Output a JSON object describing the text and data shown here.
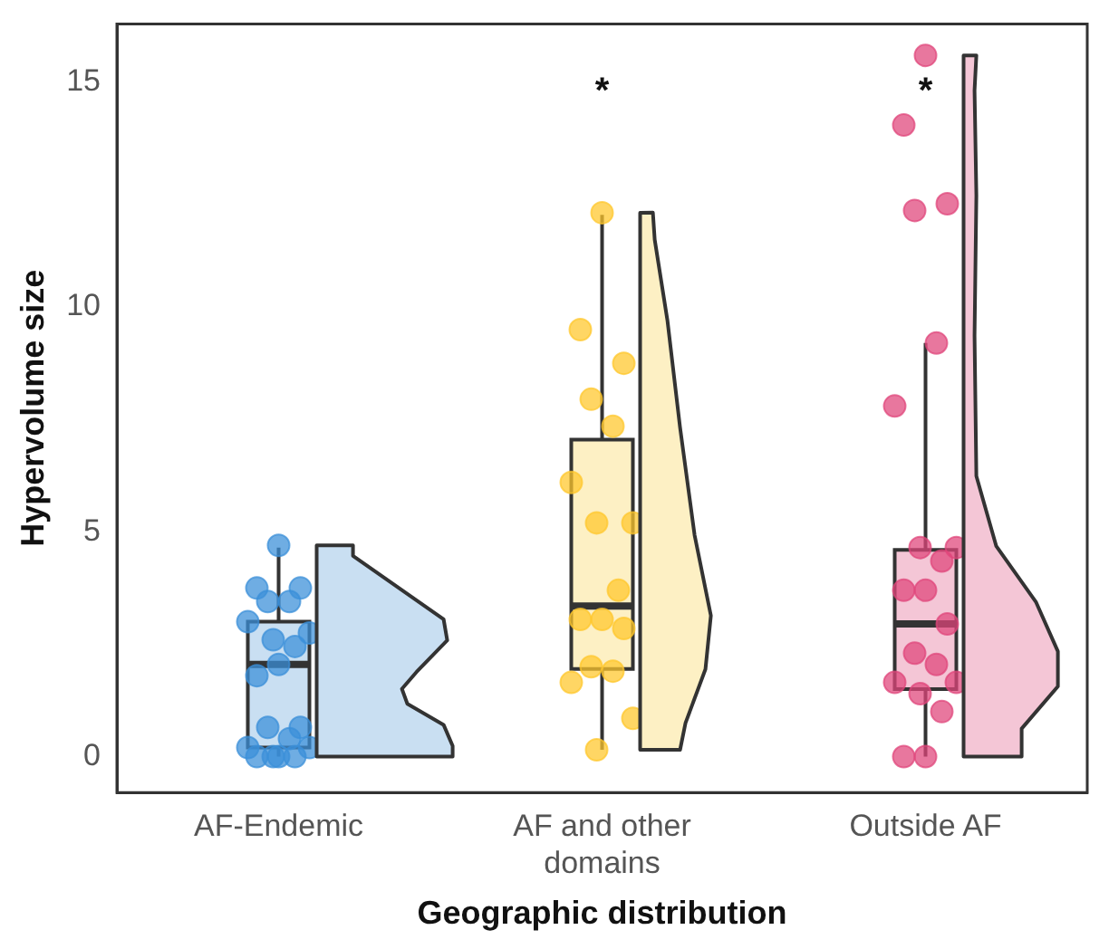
{
  "chart_data": {
    "type": "box",
    "xlabel": "Geographic distribution",
    "ylabel": "Hypervolume size",
    "categories": [
      "AF-Endemic",
      "AF and other domains",
      "Outside AF"
    ],
    "boxes": [
      {
        "low": 0,
        "q1": 0.2,
        "median": 2.05,
        "q3": 3.0,
        "high": 4.65
      },
      {
        "low": 0.15,
        "q1": 1.95,
        "median": 3.35,
        "q3": 7.05,
        "high": 12.05
      },
      {
        "low": 0,
        "q1": 1.5,
        "median": 2.95,
        "q3": 4.6,
        "high": 9.2
      }
    ],
    "colors": [
      "#c9dff2",
      "#fdf0c4",
      "#f4c6d6"
    ],
    "series": [
      {
        "type": "scatter",
        "color": "#3a8fd9",
        "x": [
          "AF-Endemic",
          "AF-Endemic",
          "AF-Endemic",
          "AF-Endemic",
          "AF-Endemic",
          "AF-Endemic",
          "AF-Endemic",
          "AF-Endemic",
          "AF-Endemic",
          "AF-Endemic",
          "AF-Endemic",
          "AF-Endemic",
          "AF-Endemic",
          "AF-Endemic",
          "AF-Endemic",
          "AF-Endemic",
          "AF-Endemic",
          "AF-Endemic",
          "AF-Endemic",
          "AF-Endemic"
        ],
        "values": [
          4.7,
          3.75,
          3.75,
          3.45,
          3.45,
          3.0,
          2.75,
          2.6,
          2.45,
          2.05,
          1.8,
          0.65,
          0.65,
          0.4,
          0.2,
          0.2,
          0,
          0,
          0,
          0
        ]
      },
      {
        "type": "scatter",
        "color": "#ffc72c",
        "x": [
          "AF and other domains",
          "AF and other domains",
          "AF and other domains",
          "AF and other domains",
          "AF and other domains",
          "AF and other domains",
          "AF and other domains",
          "AF and other domains",
          "AF and other domains",
          "AF and other domains",
          "AF and other domains",
          "AF and other domains",
          "AF and other domains",
          "AF and other domains",
          "AF and other domains",
          "AF and other domains",
          "AF and other domains"
        ],
        "values": [
          12.1,
          9.5,
          8.75,
          7.95,
          7.35,
          6.1,
          5.2,
          5.2,
          3.7,
          3.05,
          3.05,
          2.85,
          2.0,
          1.9,
          1.65,
          0.85,
          0.15
        ]
      },
      {
        "type": "scatter",
        "color": "#e0457b",
        "x": [
          "Outside AF",
          "Outside AF",
          "Outside AF",
          "Outside AF",
          "Outside AF",
          "Outside AF",
          "Outside AF",
          "Outside AF",
          "Outside AF",
          "Outside AF",
          "Outside AF",
          "Outside AF",
          "Outside AF",
          "Outside AF",
          "Outside AF",
          "Outside AF",
          "Outside AF",
          "Outside AF",
          "Outside AF",
          "Outside AF"
        ],
        "values": [
          15.6,
          14.05,
          12.3,
          12.15,
          9.2,
          7.8,
          4.65,
          4.65,
          4.35,
          3.7,
          3.7,
          2.95,
          2.3,
          2.05,
          1.65,
          1.65,
          1.4,
          1.0,
          0,
          0
        ]
      }
    ],
    "ylim": [
      -0.8,
      16.3
    ],
    "yticks": [
      0,
      5,
      10,
      15
    ],
    "grid": false,
    "legend": false,
    "annotations": [
      "*",
      "*"
    ]
  }
}
